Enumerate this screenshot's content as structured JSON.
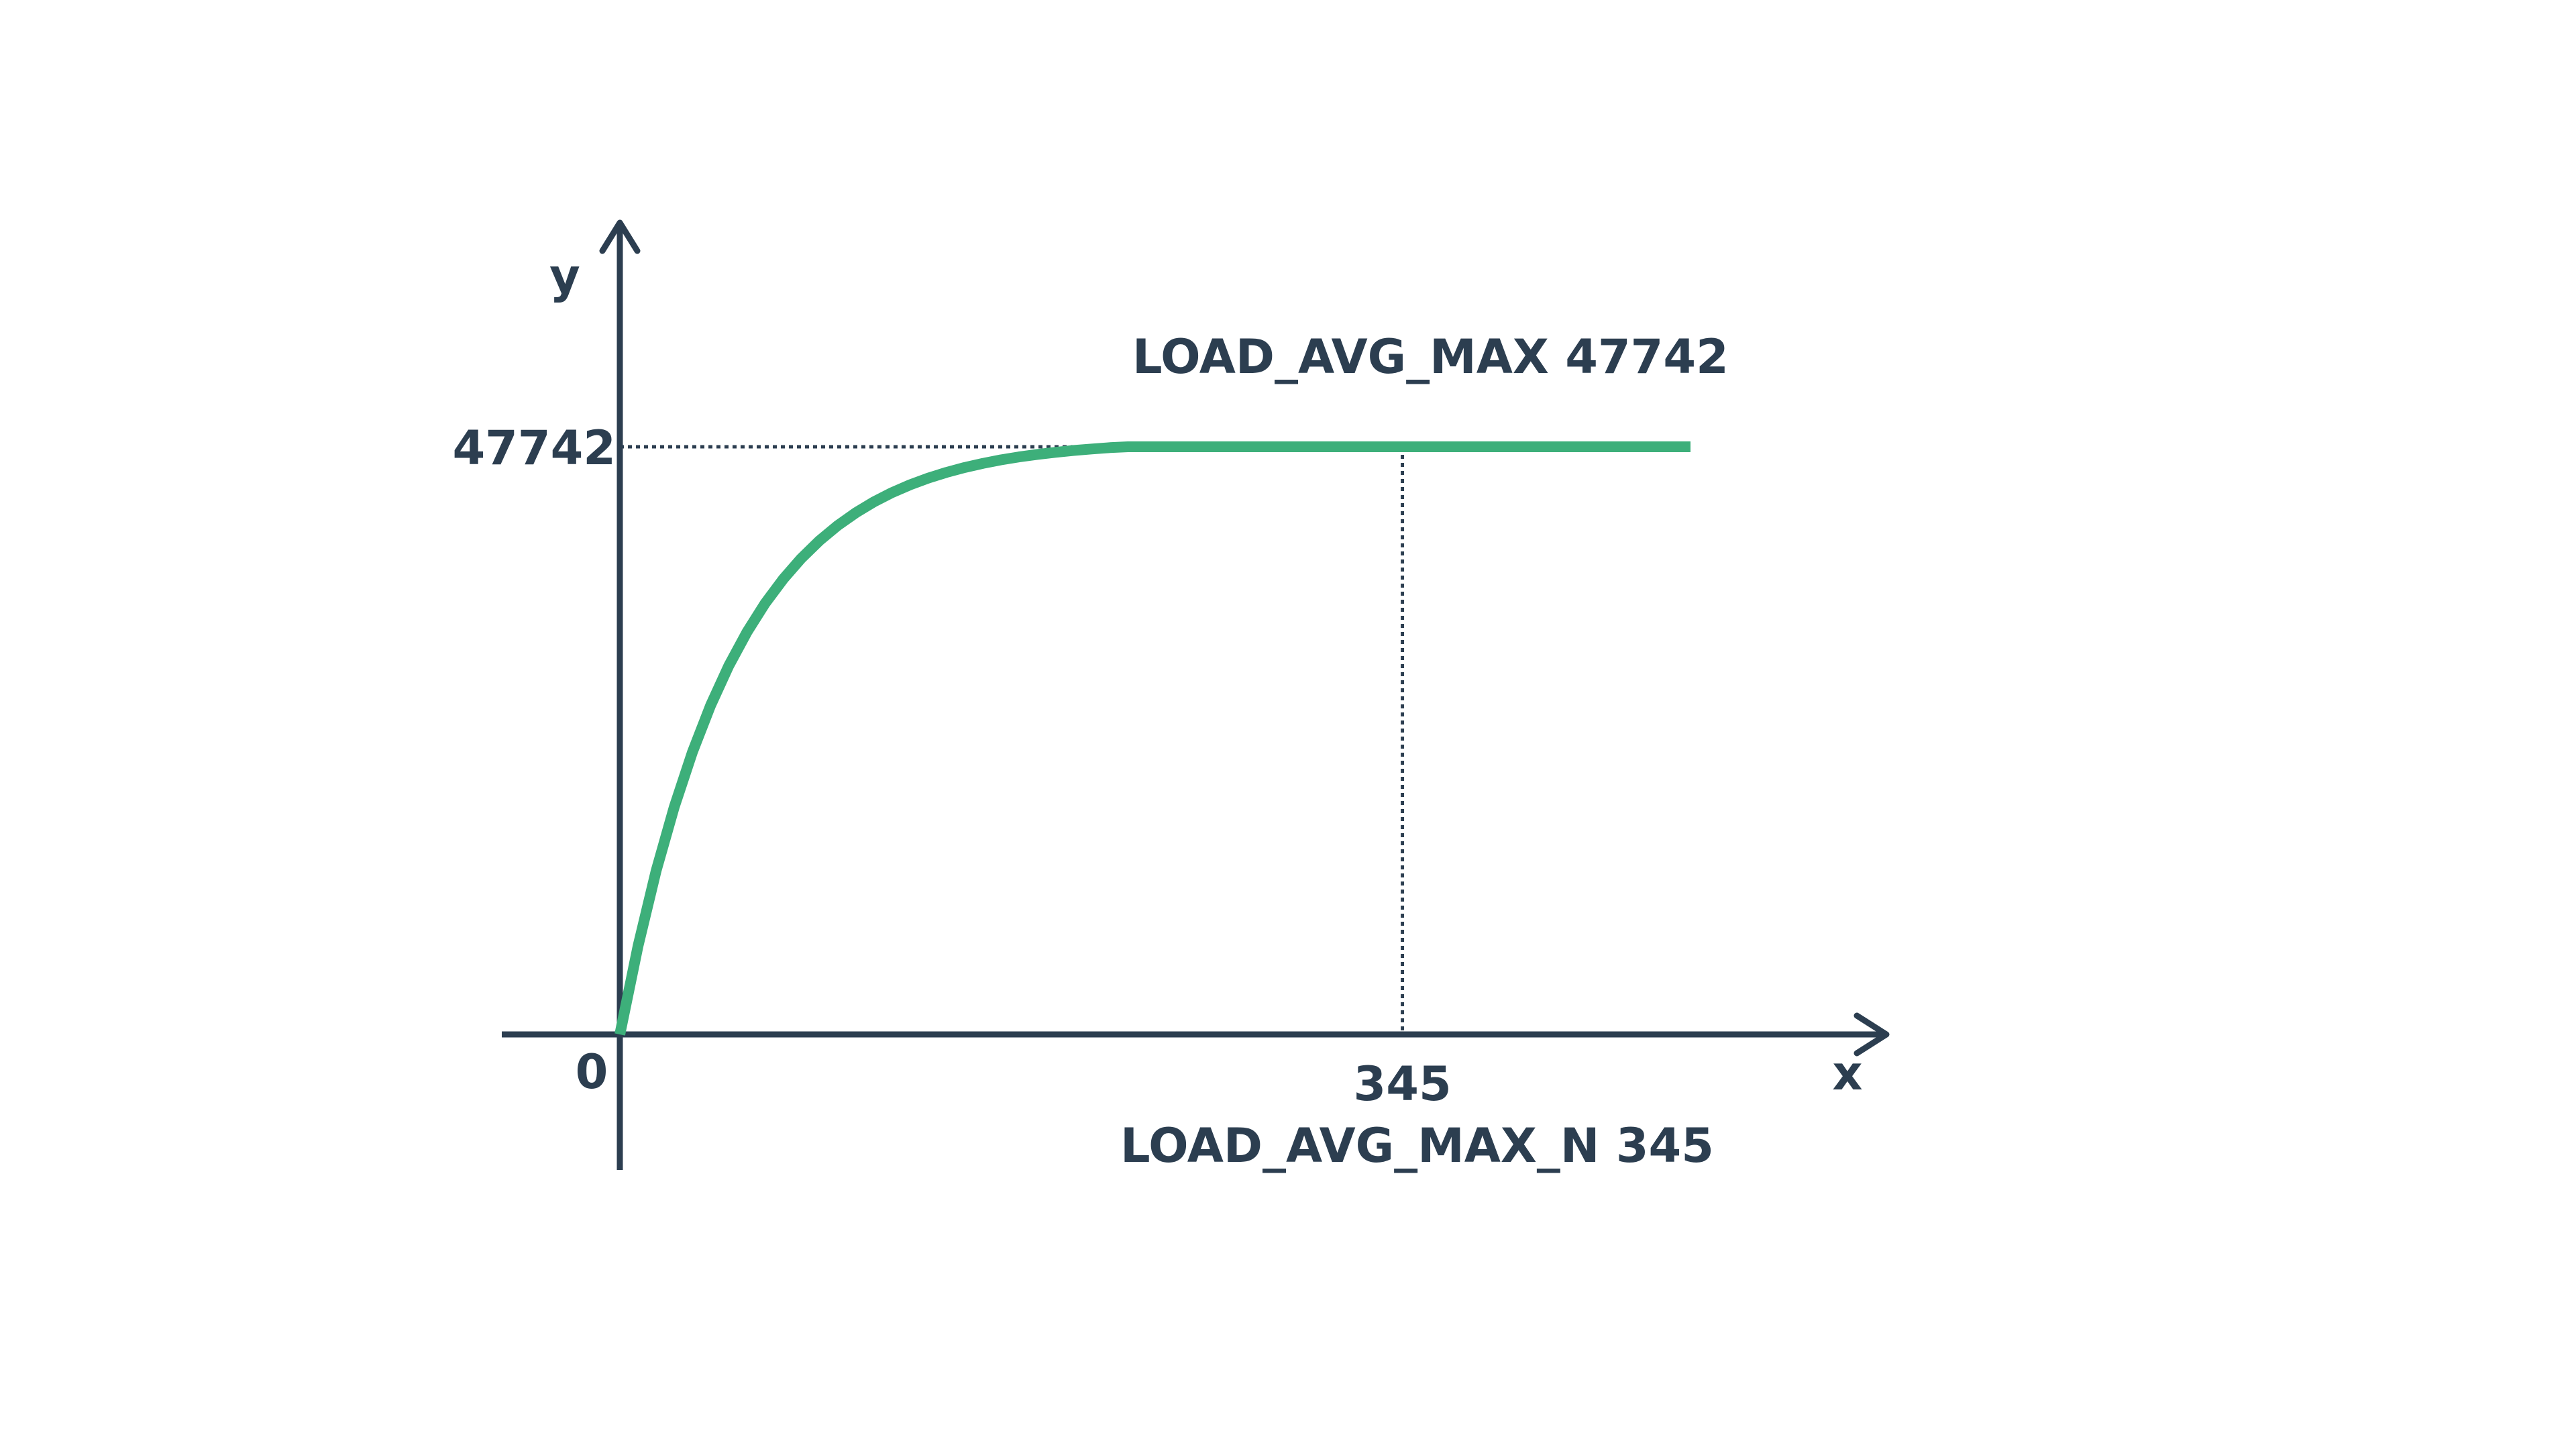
{
  "colors": {
    "axis": "#2c3e50",
    "curve": "#3daf7a",
    "text": "#2c3e50"
  },
  "chart_data": {
    "type": "line",
    "xlabel": "x",
    "ylabel": "y",
    "origin_label": "0",
    "xlim": [
      0,
      472
    ],
    "ylim": [
      0,
      47742
    ],
    "x_marker": {
      "value": 345,
      "tick_label": "345",
      "annotation": "LOAD_AVG_MAX_N 345"
    },
    "y_marker": {
      "value": 47742,
      "tick_label": "47742",
      "annotation": "LOAD_AVG_MAX 47742"
    },
    "series": [
      {
        "x": [
          0,
          8,
          16,
          24,
          32,
          40,
          48,
          56,
          64,
          72,
          80,
          88,
          96,
          104,
          112,
          120,
          128,
          136,
          144,
          152,
          160,
          168,
          176,
          184,
          192,
          200,
          208,
          216,
          224,
          232,
          240,
          248,
          256,
          264,
          272,
          280,
          288,
          296,
          304,
          312,
          320,
          328,
          336,
          345,
          360,
          380,
          400,
          420,
          440,
          460,
          472
        ],
        "y": [
          0,
          7180,
          13300,
          18500,
          22940,
          26730,
          29940,
          32680,
          35010,
          36990,
          38680,
          40120,
          41340,
          42380,
          43270,
          44020,
          44660,
          45200,
          45660,
          46060,
          46390,
          46680,
          46920,
          47120,
          47290,
          47440,
          47560,
          47670,
          47740,
          47742,
          47742,
          47742,
          47742,
          47742,
          47742,
          47742,
          47742,
          47742,
          47742,
          47742,
          47742,
          47742,
          47742,
          47742,
          47742,
          47742,
          47742,
          47742,
          47742,
          47742,
          47742
        ]
      }
    ]
  }
}
